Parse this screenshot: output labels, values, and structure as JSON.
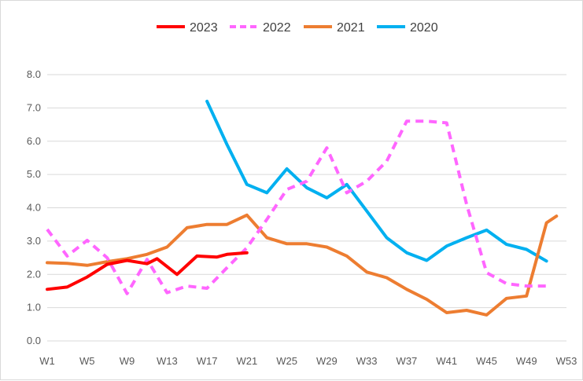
{
  "chart_data": {
    "type": "line",
    "title": "",
    "xlabel": "",
    "ylabel": "",
    "ylim": [
      0,
      8
    ],
    "y_ticks": [
      "0.0",
      "1.0",
      "2.0",
      "3.0",
      "4.0",
      "5.0",
      "6.0",
      "7.0",
      "8.0"
    ],
    "x_ticks": [
      "W1",
      "W5",
      "W9",
      "W13",
      "W17",
      "W21",
      "W25",
      "W29",
      "W33",
      "W37",
      "W41",
      "W45",
      "W49",
      "W53"
    ],
    "grid": "horizontal",
    "legend_position": "top",
    "series": [
      {
        "name": "2023",
        "color": "#ff0000",
        "style": "solid",
        "x": [
          1,
          3,
          5,
          7,
          9,
          11,
          12,
          14,
          16,
          18,
          19,
          21
        ],
        "values": [
          1.55,
          1.62,
          1.92,
          2.3,
          2.42,
          2.32,
          2.47,
          2.0,
          2.55,
          2.52,
          2.6,
          2.65
        ]
      },
      {
        "name": "2022",
        "color": "#ff66ff",
        "style": "dashed",
        "x": [
          1,
          3,
          5,
          7,
          9,
          11,
          13,
          15,
          17,
          19,
          21,
          23,
          25,
          27,
          29,
          31,
          33,
          35,
          37,
          39,
          41,
          43,
          45,
          47,
          49,
          51
        ],
        "values": [
          3.35,
          2.55,
          3.02,
          2.5,
          1.42,
          2.45,
          1.45,
          1.65,
          1.58,
          2.2,
          2.8,
          3.65,
          4.55,
          4.8,
          5.8,
          4.45,
          4.8,
          5.4,
          6.6,
          6.6,
          6.55,
          4.1,
          2.05,
          1.72,
          1.65,
          1.65
        ]
      },
      {
        "name": "2021",
        "color": "#ed7d31",
        "style": "solid",
        "x": [
          1,
          3,
          5,
          7,
          9,
          11,
          13,
          15,
          17,
          19,
          21,
          23,
          25,
          27,
          29,
          31,
          33,
          35,
          37,
          39,
          41,
          43,
          45,
          47,
          49,
          51
        ],
        "values": [
          2.35,
          2.33,
          2.27,
          2.38,
          2.47,
          2.6,
          2.82,
          3.4,
          3.5,
          3.5,
          3.78,
          3.1,
          2.92,
          2.92,
          2.82,
          2.55,
          2.07,
          1.9,
          1.55,
          1.25,
          0.85,
          0.92,
          0.78,
          1.28,
          1.35,
          3.55
        ]
      },
      {
        "name": "2020",
        "color": "#00b0f0",
        "style": "solid",
        "x": [
          17,
          19,
          21,
          23,
          25,
          27,
          29,
          31,
          33,
          35,
          37,
          39,
          41,
          43,
          45,
          47,
          49,
          51
        ],
        "values": [
          7.2,
          5.9,
          4.7,
          4.45,
          5.17,
          4.6,
          4.3,
          4.7,
          3.9,
          3.1,
          2.65,
          2.42,
          2.85,
          3.1,
          3.33,
          2.9,
          2.75,
          2.4
        ]
      }
    ],
    "extra_points": {
      "2021": {
        "x": [
          52
        ],
        "values": [
          3.75
        ]
      }
    }
  }
}
